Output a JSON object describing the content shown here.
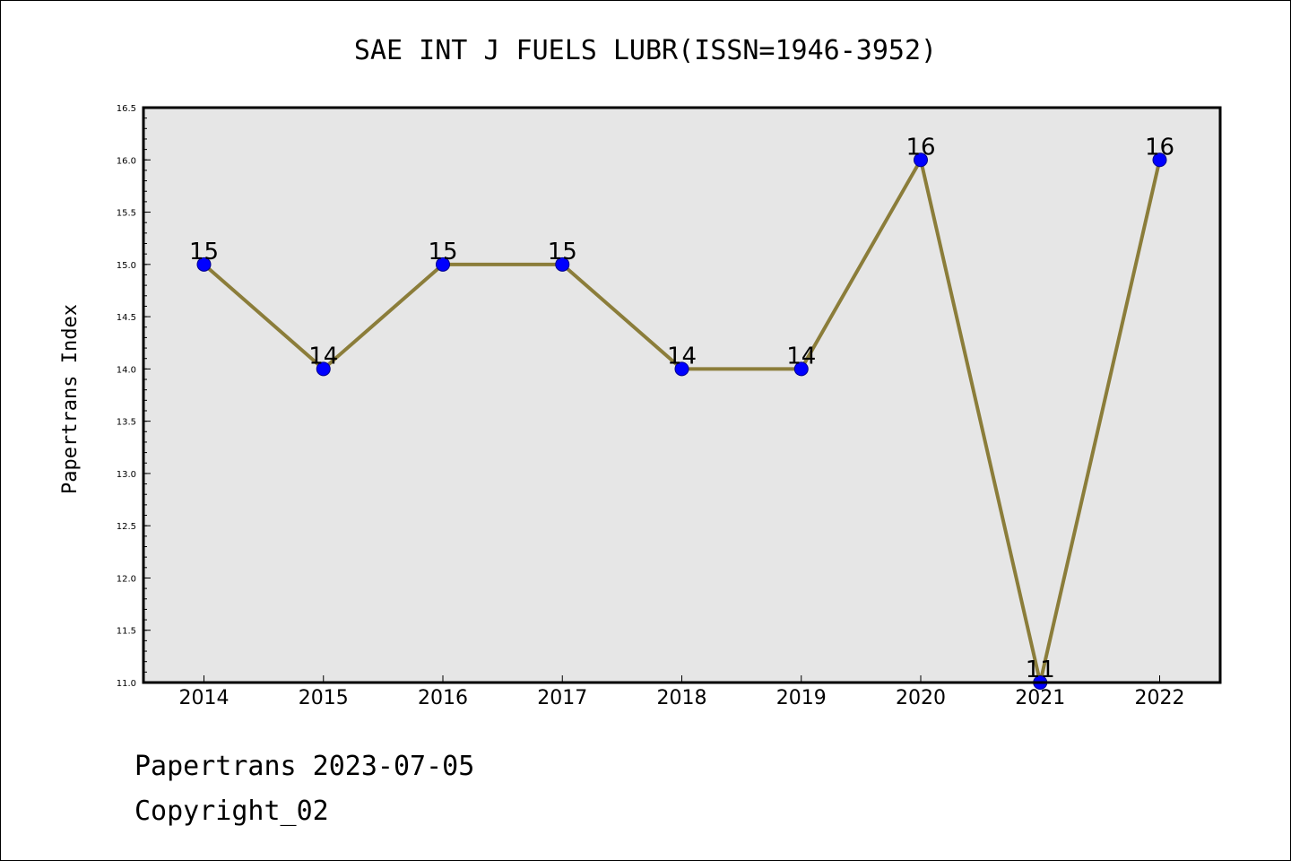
{
  "chart_data": {
    "type": "line",
    "title": "SAE INT J FUELS LUBR(ISSN=1946-3952)",
    "xlabel": "",
    "ylabel": "Papertrans Index",
    "categories": [
      "2014",
      "2015",
      "2016",
      "2017",
      "2018",
      "2019",
      "2020",
      "2021",
      "2022"
    ],
    "series": [
      {
        "values": [
          15,
          14,
          15,
          15,
          14,
          14,
          16,
          11,
          16
        ],
        "data_labels": [
          "15",
          "14",
          "15",
          "15",
          "14",
          "14",
          "16",
          "11",
          "16"
        ]
      }
    ],
    "ylim": [
      11.0,
      16.5
    ],
    "yticks": [
      "11.0",
      "11.5",
      "12.0",
      "12.5",
      "13.0",
      "13.5",
      "14.0",
      "14.5",
      "15.0",
      "15.5",
      "16.0",
      "16.5"
    ],
    "grid": false,
    "line_color": "#8b7d3a",
    "marker_color": "#0000ff",
    "plot_background": "#e6e6e6"
  },
  "footer": {
    "line1": "Papertrans 2023-07-05",
    "line2": "Copyright_02"
  }
}
